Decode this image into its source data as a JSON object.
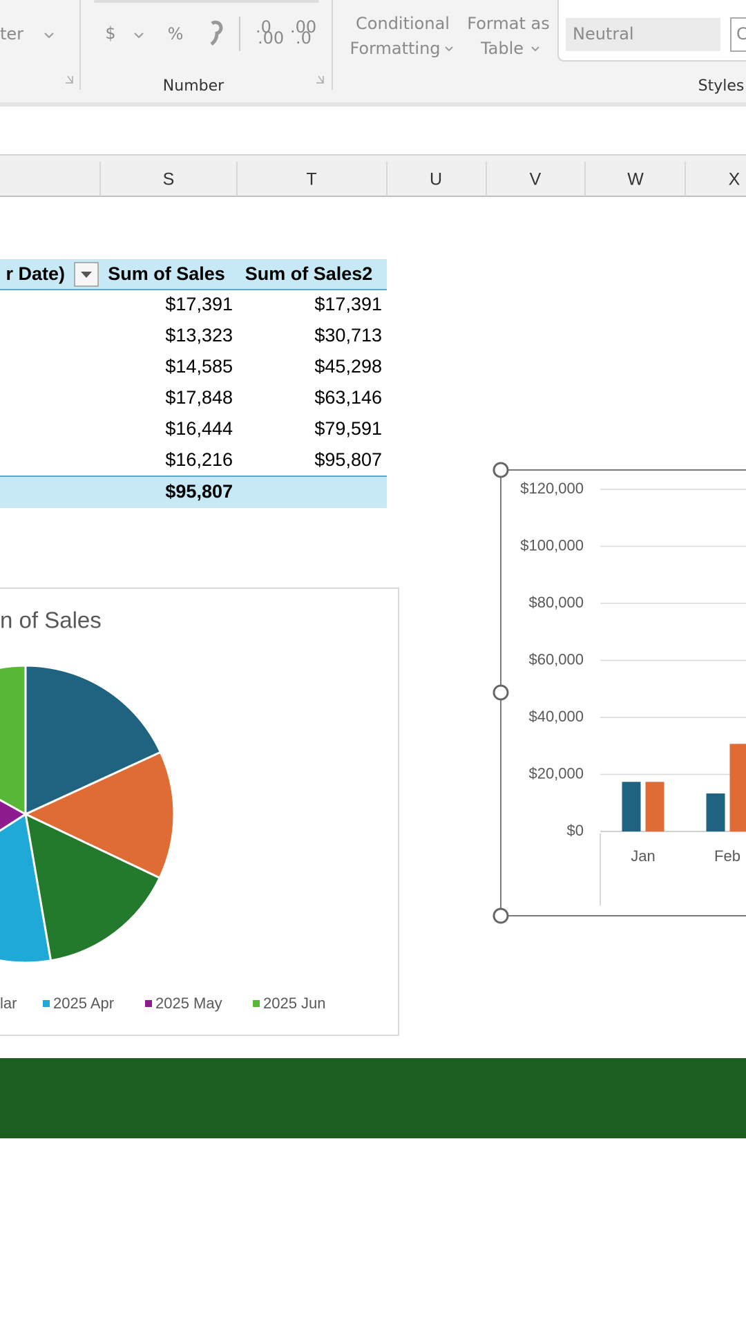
{
  "ribbon": {
    "alignment_fragment": "ter",
    "number_group": {
      "currency": "$",
      "percent": "%",
      "increase_decimal": [
        ".0",
        ".00"
      ],
      "decrease_decimal": [
        ".00",
        ".0"
      ],
      "label": "Number"
    },
    "conditional_formatting": [
      "Conditional",
      "Formatting"
    ],
    "format_as_table": [
      "Format as",
      "Table"
    ],
    "styles": {
      "cells": [
        "Neutral",
        "C"
      ],
      "label": "Styles"
    }
  },
  "column_headers": [
    "S",
    "T",
    "U",
    "V",
    "W",
    "X"
  ],
  "pivot": {
    "headers": [
      "r Date)",
      "Sum of Sales",
      "Sum of Sales2"
    ],
    "rows": [
      [
        "$17,391",
        "$17,391"
      ],
      [
        "$13,323",
        "$30,713"
      ],
      [
        "$14,585",
        "$45,298"
      ],
      [
        "$17,848",
        "$63,146"
      ],
      [
        "$16,444",
        "$79,591"
      ],
      [
        "$16,216",
        "$95,807"
      ]
    ],
    "total": "$95,807"
  },
  "chart_data": [
    {
      "type": "pie",
      "title": "n of Sales",
      "categories": [
        null,
        null,
        "lar",
        "2025 Apr",
        "2025 May",
        "2025 Jun"
      ],
      "values": [
        17391,
        13323,
        14585,
        17848,
        16444,
        16216
      ],
      "colors": [
        "#1f6380",
        "#e06c35",
        "#237a2d",
        "#1ea9d6",
        "#8e1c8e",
        "#58b837"
      ]
    },
    {
      "type": "bar",
      "categories": [
        "Jan",
        "Feb"
      ],
      "series": [
        {
          "color": "#1f6380",
          "values": [
            17391,
            13323
          ]
        },
        {
          "color": "#e06c35",
          "values": [
            17391,
            30713
          ]
        }
      ],
      "ylim": [
        0,
        120000
      ],
      "yticks": [
        {
          "value": 0,
          "label": "$0"
        },
        {
          "value": 20000,
          "label": "$20,000"
        },
        {
          "value": 40000,
          "label": "$40,000"
        },
        {
          "value": 60000,
          "label": "$60,000"
        },
        {
          "value": 80000,
          "label": "$80,000"
        },
        {
          "value": 100000,
          "label": "$100,000"
        },
        {
          "value": 120000,
          "label": "$120,000"
        }
      ],
      "grid": true
    }
  ]
}
